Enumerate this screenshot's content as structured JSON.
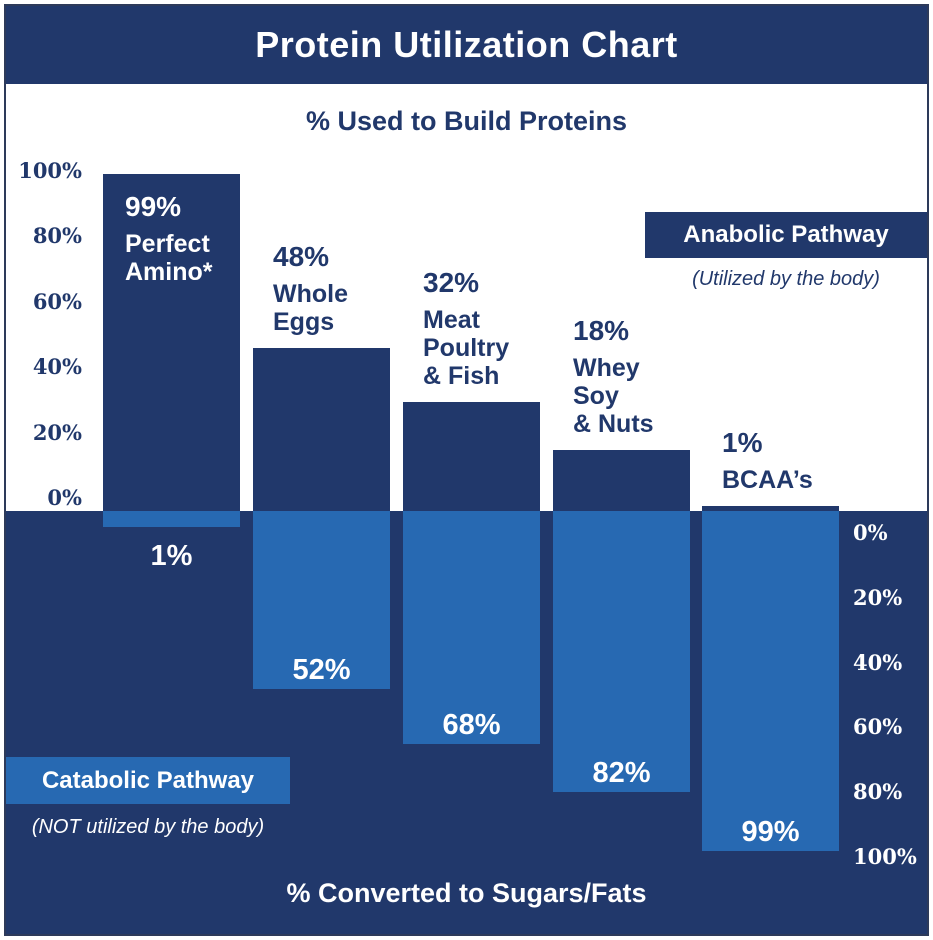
{
  "title": "Protein Utilization Chart",
  "colors": {
    "navy": "#21386b",
    "light_blue": "#2769b2",
    "background": "#ffffff",
    "frame_border": "#2d3a5a"
  },
  "top_section": {
    "heading": "% Used to Build Proteins",
    "axis_ticks": [
      "100%",
      "80%",
      "60%",
      "40%",
      "20%",
      "0%"
    ]
  },
  "bottom_section": {
    "heading": "% Converted to Sugars/Fats",
    "axis_ticks": [
      "0%",
      "20%",
      "40%",
      "60%",
      "80%",
      "100%"
    ]
  },
  "legend": {
    "anabolic": {
      "label": "Anabolic Pathway",
      "caption": "(Utilized by the body)"
    },
    "catabolic": {
      "label": "Catabolic Pathway",
      "caption": "(NOT utilized by the body)"
    }
  },
  "chart_data": {
    "type": "bar",
    "categories": [
      "Perfect Amino*",
      "Whole Eggs",
      "Meat Poultry & Fish",
      "Whey Soy & Nuts",
      "BCAA's"
    ],
    "series": [
      {
        "name": "% Used to Build Proteins (Anabolic Pathway)",
        "values": [
          99,
          48,
          32,
          18,
          1
        ]
      },
      {
        "name": "% Converted to Sugars/Fats (Catabolic Pathway)",
        "values": [
          1,
          52,
          68,
          82,
          99
        ]
      }
    ],
    "ylim": [
      0,
      100
    ],
    "grid": false,
    "legend_position": "anabolic right-top, catabolic left-bottom",
    "bars": [
      {
        "build_pct": "99%",
        "name_lines": [
          "Perfect",
          "Amino*"
        ],
        "convert_pct": "1%",
        "label_position": "inside"
      },
      {
        "build_pct": "48%",
        "name_lines": [
          "Whole",
          "Eggs"
        ],
        "convert_pct": "52%",
        "label_position": "above"
      },
      {
        "build_pct": "32%",
        "name_lines": [
          "Meat",
          "Poultry",
          "& Fish"
        ],
        "convert_pct": "68%",
        "label_position": "above"
      },
      {
        "build_pct": "18%",
        "name_lines": [
          "Whey",
          "Soy",
          "& Nuts"
        ],
        "convert_pct": "82%",
        "label_position": "above"
      },
      {
        "build_pct": "1%",
        "name_lines": [
          "BCAA’s"
        ],
        "convert_pct": "99%",
        "label_position": "above"
      }
    ]
  }
}
